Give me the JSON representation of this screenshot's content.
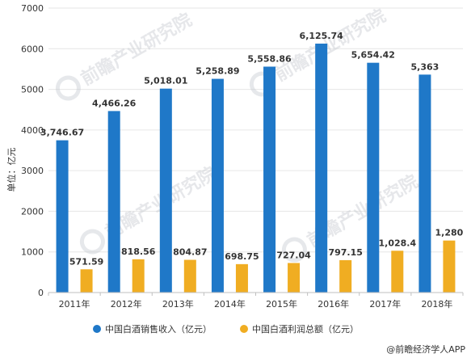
{
  "chart_data": {
    "type": "bar",
    "categories": [
      "2011年",
      "2012年",
      "2013年",
      "2014年",
      "2015年",
      "2016年",
      "2017年",
      "2018年"
    ],
    "series": [
      {
        "name": "中国白酒销售收入（亿元）",
        "color": "#1f78c8",
        "values": [
          3746.67,
          4466.26,
          5018.01,
          5258.89,
          5558.86,
          6125.74,
          5654.42,
          5363
        ],
        "labels": [
          "3,746.67",
          "4,466.26",
          "5,018.01",
          "5,258.89",
          "5,558.86",
          "6,125.74",
          "5,654.42",
          "5,363"
        ]
      },
      {
        "name": "中国白酒利润总额（亿元）",
        "color": "#f0ad22",
        "values": [
          571.59,
          818.56,
          804.87,
          698.75,
          727.04,
          797.15,
          1028.4,
          1280
        ],
        "labels": [
          "571.59",
          "818.56",
          "804.87",
          "698.75",
          "727.04",
          "797.15",
          "1,028.4",
          "1,280"
        ]
      }
    ],
    "ylabel": "单位：亿元",
    "ylim": [
      0,
      7000
    ],
    "yticks": [
      "0",
      "1000",
      "2000",
      "3000",
      "4000",
      "5000",
      "6000",
      "7000"
    ],
    "grid": true,
    "legend_position": "bottom"
  },
  "watermark": "前瞻产业研究院",
  "credit": "@前瞻经济学人APP"
}
